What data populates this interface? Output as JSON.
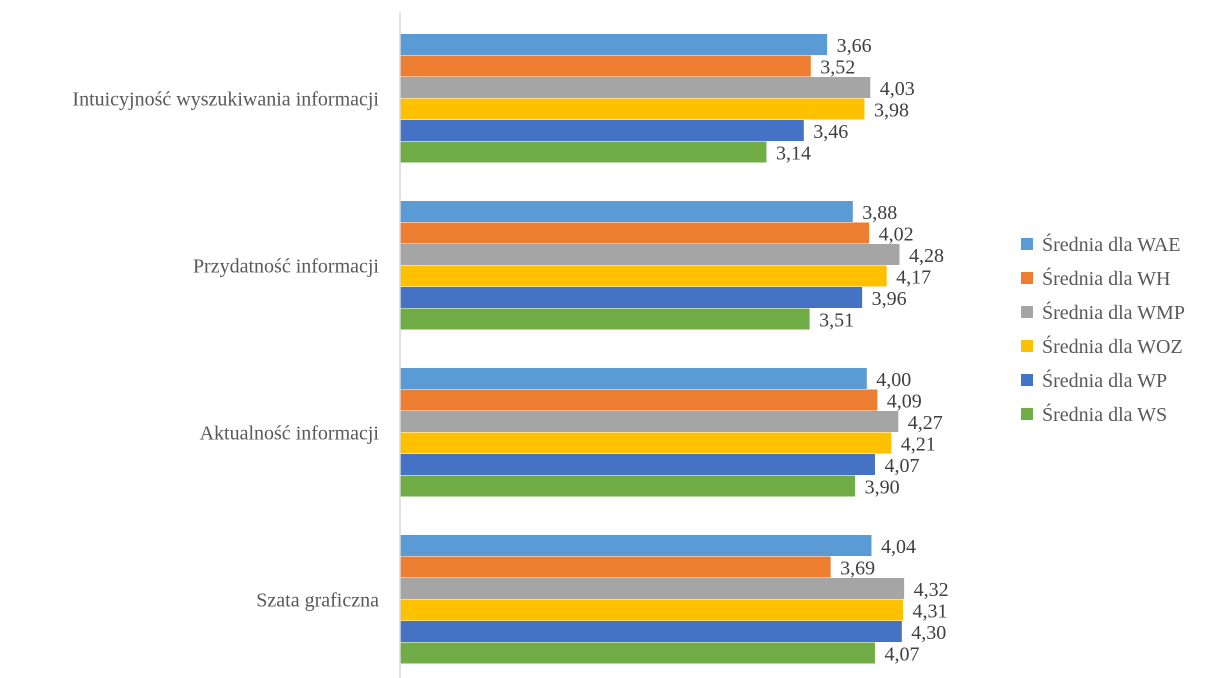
{
  "chart_data": {
    "type": "bar",
    "orientation": "horizontal",
    "title": "",
    "xlabel": "",
    "ylabel": "",
    "xlim": [
      0,
      5
    ],
    "grid": false,
    "legend_position": "right",
    "decimal_separator": ",",
    "categories": [
      "Intuicyjność wyszukiwania informacji",
      "Przydatność informacji",
      "Aktualność informacji",
      "Szata graficzna"
    ],
    "series": [
      {
        "name": "Średnia dla WAE",
        "color": "#5B9BD5",
        "values": [
          3.66,
          3.88,
          4.0,
          4.04
        ]
      },
      {
        "name": "Średnia dla WH",
        "color": "#ED7D31",
        "values": [
          3.52,
          4.02,
          4.09,
          3.69
        ]
      },
      {
        "name": "Średnia dla WMP",
        "color": "#A5A5A5",
        "values": [
          4.03,
          4.28,
          4.27,
          4.32
        ]
      },
      {
        "name": "Średnia dla WOZ",
        "color": "#FFC000",
        "values": [
          3.98,
          4.17,
          4.21,
          4.31
        ]
      },
      {
        "name": "Średnia dla WP",
        "color": "#4472C4",
        "values": [
          3.46,
          3.96,
          4.07,
          4.3
        ]
      },
      {
        "name": "Średnia dla WS",
        "color": "#70AD47",
        "values": [
          3.14,
          3.51,
          3.9,
          4.07
        ]
      }
    ]
  }
}
